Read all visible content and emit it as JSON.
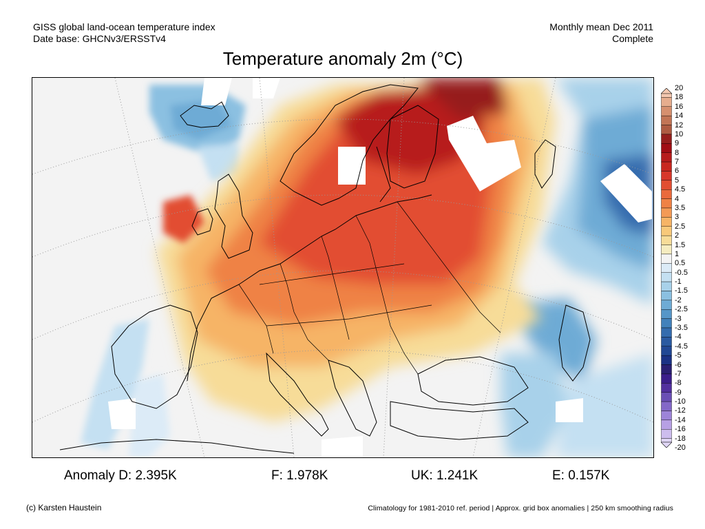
{
  "header": {
    "left_line1": "GISS global land-ocean temperature index",
    "left_line2": "Date base: GHCNv3/ERSSTv4",
    "right_line1": "Monthly mean Dec 2011",
    "right_line2": "Complete"
  },
  "title": "Temperature anomaly 2m (°C)",
  "colorbar": {
    "labels": [
      "20",
      "18",
      "16",
      "14",
      "12",
      "10",
      "9",
      "8",
      "7",
      "6",
      "5",
      "4.5",
      "4",
      "3.5",
      "3",
      "2.5",
      "2",
      "1.5",
      "1",
      "0.5",
      "-0.5",
      "-1",
      "-1.5",
      "-2",
      "-2.5",
      "-3",
      "-3.5",
      "-4",
      "-4.5",
      "-5",
      "-6",
      "-7",
      "-8",
      "-9",
      "-10",
      "-12",
      "-14",
      "-16",
      "-18",
      "-20"
    ],
    "colors": [
      "#f4c8b0",
      "#e6ad8e",
      "#d6906f",
      "#c27556",
      "#ae5c42",
      "#961f1d",
      "#a10d14",
      "#b71c1c",
      "#c8271f",
      "#d7372a",
      "#e24e32",
      "#ea6a3c",
      "#ef8245",
      "#f39a55",
      "#f6b466",
      "#f8c97a",
      "#f7dc98",
      "#f5ecc0",
      "#f3f3f3",
      "#dcebf7",
      "#c4e0f2",
      "#a8d1ea",
      "#8bc0e1",
      "#6eabd5",
      "#5696c8",
      "#4281bb",
      "#346cae",
      "#2a5aa1",
      "#214894",
      "#1b3385",
      "#2a2072",
      "#3b1e8a",
      "#52309e",
      "#6a4fb5",
      "#8368c8",
      "#9d84d8",
      "#b7a0e4",
      "#cdbdee",
      "#e0d6f6"
    ]
  },
  "stats": {
    "d": "Anomaly D: 2.395K",
    "f": "F: 1.978K",
    "uk": "UK: 1.241K",
    "e": "E: 0.157K"
  },
  "footer": {
    "left": "(c) Karsten Haustein",
    "right": "Climatology for 1981-2010 ref. period | Approx. grid box anomalies | 250 km smoothing radius"
  }
}
